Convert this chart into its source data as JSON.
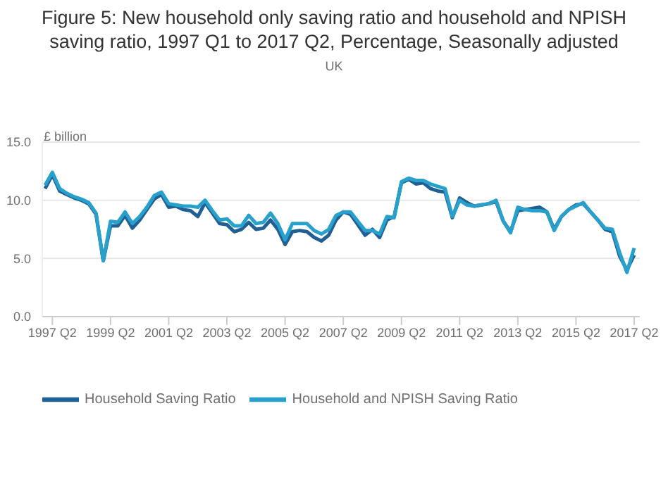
{
  "chart_data": {
    "type": "line",
    "title": "Figure 5: New household only saving ratio and household and NPISH saving ratio, 1997 Q1 to 2017 Q2, Percentage, Seasonally adjusted",
    "subtitle": "UK",
    "ylabel": "£ billion",
    "categories": [
      null,
      "1997 Q2",
      null,
      null,
      null,
      null,
      null,
      null,
      null,
      "1999 Q2",
      null,
      null,
      null,
      null,
      null,
      null,
      null,
      "2001 Q2",
      null,
      null,
      null,
      null,
      null,
      null,
      null,
      "2003 Q2",
      null,
      null,
      null,
      null,
      null,
      null,
      null,
      "2005 Q2",
      null,
      null,
      null,
      null,
      null,
      null,
      null,
      "2007 Q2",
      null,
      null,
      null,
      null,
      null,
      null,
      null,
      "2009 Q2",
      null,
      null,
      null,
      null,
      null,
      null,
      null,
      "2011 Q2",
      null,
      null,
      null,
      null,
      null,
      null,
      null,
      "2013 Q2",
      null,
      null,
      null,
      null,
      null,
      null,
      null,
      "2015 Q2",
      null,
      null,
      null,
      null,
      null,
      null,
      null,
      "2017 Q2"
    ],
    "series": [
      {
        "name": "Household Saving Ratio",
        "color": "#206095",
        "values": [
          11.0,
          12.2,
          10.8,
          10.5,
          10.2,
          10.0,
          9.7,
          8.8,
          4.8,
          7.8,
          7.8,
          8.7,
          7.6,
          8.3,
          9.2,
          10.1,
          10.5,
          9.4,
          9.5,
          9.2,
          9.1,
          8.6,
          9.8,
          8.9,
          8.0,
          7.9,
          7.3,
          7.5,
          8.1,
          7.5,
          7.6,
          8.3,
          7.5,
          6.2,
          7.3,
          7.4,
          7.3,
          6.8,
          6.5,
          7.0,
          8.3,
          9.0,
          8.8,
          7.9,
          7.0,
          7.5,
          6.8,
          8.3,
          8.6,
          11.5,
          11.8,
          11.4,
          11.5,
          11.0,
          10.8,
          10.7,
          8.5,
          10.2,
          9.8,
          9.5,
          9.6,
          9.7,
          9.9,
          8.2,
          7.3,
          9.1,
          9.2,
          9.3,
          9.4,
          9.0,
          7.5,
          8.6,
          9.2,
          9.6,
          9.7,
          9.0,
          8.3,
          7.5,
          7.3,
          5.2,
          4.0,
          5.3
        ]
      },
      {
        "name": "Household and NPISH Saving Ratio",
        "color": "#27a0cc",
        "values": [
          11.3,
          12.4,
          11.0,
          10.6,
          10.3,
          10.1,
          9.8,
          8.9,
          4.8,
          8.2,
          8.1,
          9.0,
          8.0,
          8.6,
          9.4,
          10.4,
          10.7,
          9.7,
          9.6,
          9.5,
          9.5,
          9.4,
          10.0,
          9.1,
          8.3,
          8.4,
          7.8,
          7.8,
          8.7,
          8.0,
          8.1,
          8.9,
          8.0,
          6.6,
          8.0,
          8.0,
          8.0,
          7.4,
          7.1,
          7.5,
          8.7,
          9.0,
          9.0,
          8.2,
          7.4,
          7.4,
          7.1,
          8.6,
          8.5,
          11.6,
          11.9,
          11.7,
          11.7,
          11.4,
          11.2,
          11.0,
          8.6,
          10.0,
          9.6,
          9.5,
          9.6,
          9.7,
          10.0,
          8.2,
          7.2,
          9.4,
          9.2,
          9.1,
          9.1,
          9.0,
          7.4,
          8.6,
          9.2,
          9.5,
          9.8,
          9.0,
          8.3,
          7.6,
          7.5,
          5.5,
          3.8,
          5.9
        ]
      }
    ],
    "ylim": [
      0,
      15
    ],
    "yticks": [
      {
        "value": 0,
        "label": "0.0"
      },
      {
        "value": 5,
        "label": "5.0"
      },
      {
        "value": 10,
        "label": "10.0"
      },
      {
        "value": 15,
        "label": "15.0"
      }
    ],
    "grid": "y",
    "legend": "bottom left",
    "marker": "none",
    "line_style": "solid"
  }
}
